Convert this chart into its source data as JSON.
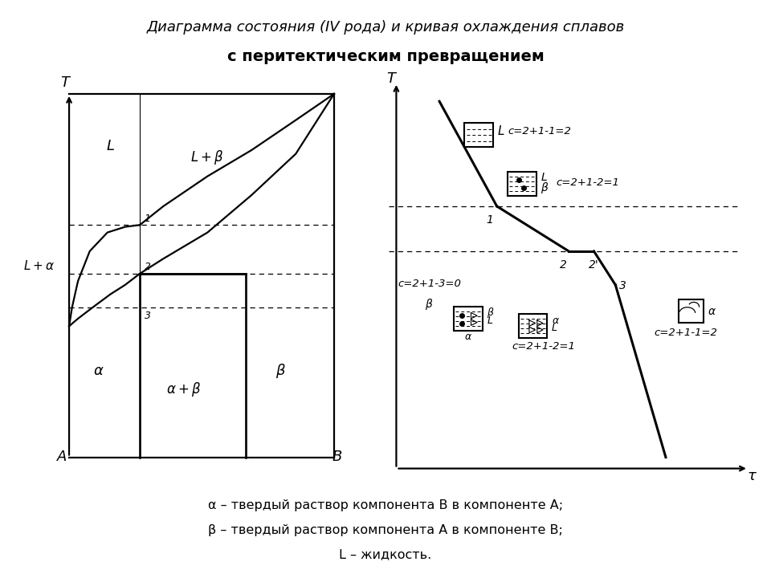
{
  "title_line1": "Диаграмма состояния (IV рода) и кривая охлаждения сплавов",
  "title_line2": "с перитектическим превращением",
  "bg_color": "#ffffff",
  "footer_line1": "α – твердый раствор компонента B в компоненте A;",
  "footer_line2": "β – твердый раствор компонента A в компоненте B;",
  "footer_line3": "L – жидкость.",
  "lw": 1.6,
  "curve_lw": 2.2
}
